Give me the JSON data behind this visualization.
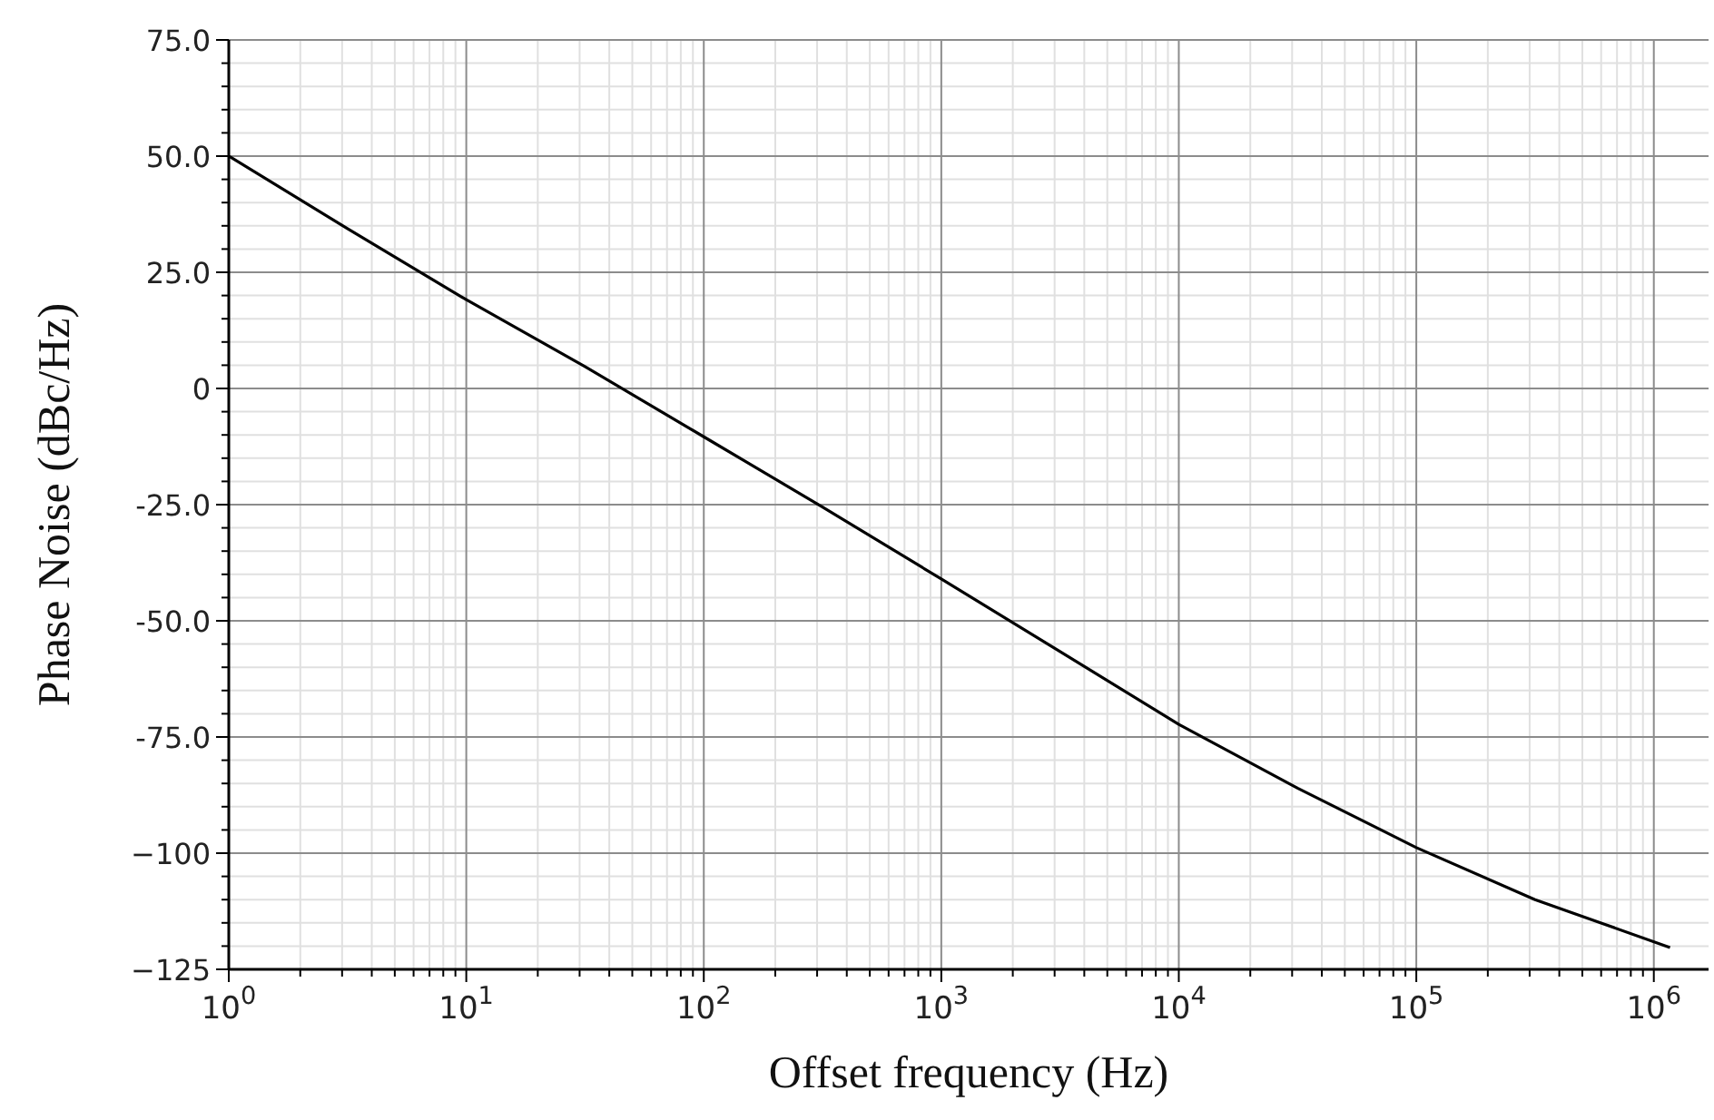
{
  "chart_data": {
    "type": "line",
    "xlabel": "Offset frequency (Hz)",
    "ylabel": "Phase Noise (dBc/Hz)",
    "x": [
      1,
      3.16,
      10,
      31.6,
      100,
      316,
      1000,
      3162,
      10000,
      31623,
      100000,
      316228,
      1170000
    ],
    "series": [
      {
        "color": "#000000",
        "values": [
          50,
          34.4,
          19.1,
          4.7,
          -10.4,
          -25.5,
          -41,
          -56.6,
          -72.3,
          -86,
          -98.8,
          -110,
          -120.3
        ]
      }
    ],
    "log": "x",
    "xlim": [
      1,
      1700000
    ],
    "xticks": [
      {
        "value": 1,
        "label": "10$^{0}$"
      },
      {
        "value": 10,
        "label": "10$^{1}$"
      },
      {
        "value": 100,
        "label": "10$^{2}$"
      },
      {
        "value": 1000,
        "label": "10$^{3}$"
      },
      {
        "value": 10000,
        "label": "10$^{4}$"
      },
      {
        "value": 100000,
        "label": "10$^{5}$"
      },
      {
        "value": 1000000,
        "label": "10$^{6}$"
      }
    ],
    "ylim": [
      -125,
      75
    ],
    "yticks": [
      {
        "value": 75,
        "label": "75.0"
      },
      {
        "value": 50,
        "label": "50.0"
      },
      {
        "value": 25,
        "label": "25.0"
      },
      0,
      {
        "value": -25,
        "label": "-25.0"
      },
      {
        "value": -50,
        "label": "-50.0"
      },
      {
        "value": -75,
        "label": "-75.0"
      },
      {
        "value": -100,
        "label": "−100"
      },
      {
        "value": -125,
        "label": "−125"
      }
    ],
    "grid": true,
    "marker": "none",
    "line_style": "solid"
  }
}
